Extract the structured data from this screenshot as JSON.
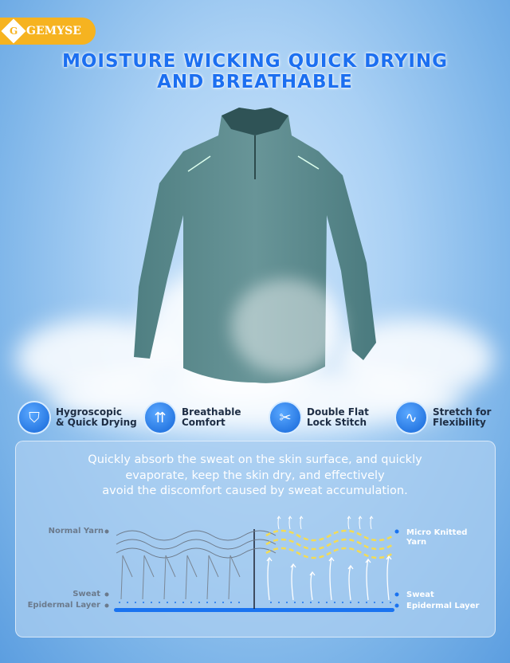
{
  "brand": {
    "name": "GEMYSE",
    "color": "#f6b320"
  },
  "title": {
    "line1": "MOISTURE WICKING QUICK DRYING",
    "line2": "AND BREATHABLE",
    "color": "#1c6ff0"
  },
  "features": [
    {
      "icon": "filter-cup-icon",
      "line1": "Hygroscopic",
      "line2": "& Quick Drying"
    },
    {
      "icon": "air-flow-icon",
      "line1": "Breathable",
      "line2": "Comfort"
    },
    {
      "icon": "stitch-icon",
      "line1": "Double Flat",
      "line2": "Lock Stitch"
    },
    {
      "icon": "stretch-wave-icon",
      "line1": "Stretch for",
      "line2": "Flexibility"
    }
  ],
  "description": {
    "line1": "Quickly absorb the sweat on the skin surface, and quickly",
    "line2": "evaporate, keep the skin dry, and effectively",
    "line3": "avoid the discomfort caused by sweat accumulation."
  },
  "diagram": {
    "left": {
      "yarn": "Normal Yarn",
      "sweat": "Sweat",
      "layer": "Epidermal Layer"
    },
    "right": {
      "yarn_line1": "Micro Knitted",
      "yarn_line2": "Yarn",
      "sweat": "Sweat",
      "layer": "Epidermal Layer"
    },
    "colors": {
      "skin": "#1a73f0",
      "yarn_micro": "#f3dc55",
      "yarn_normal": "#6d7a8a"
    }
  }
}
